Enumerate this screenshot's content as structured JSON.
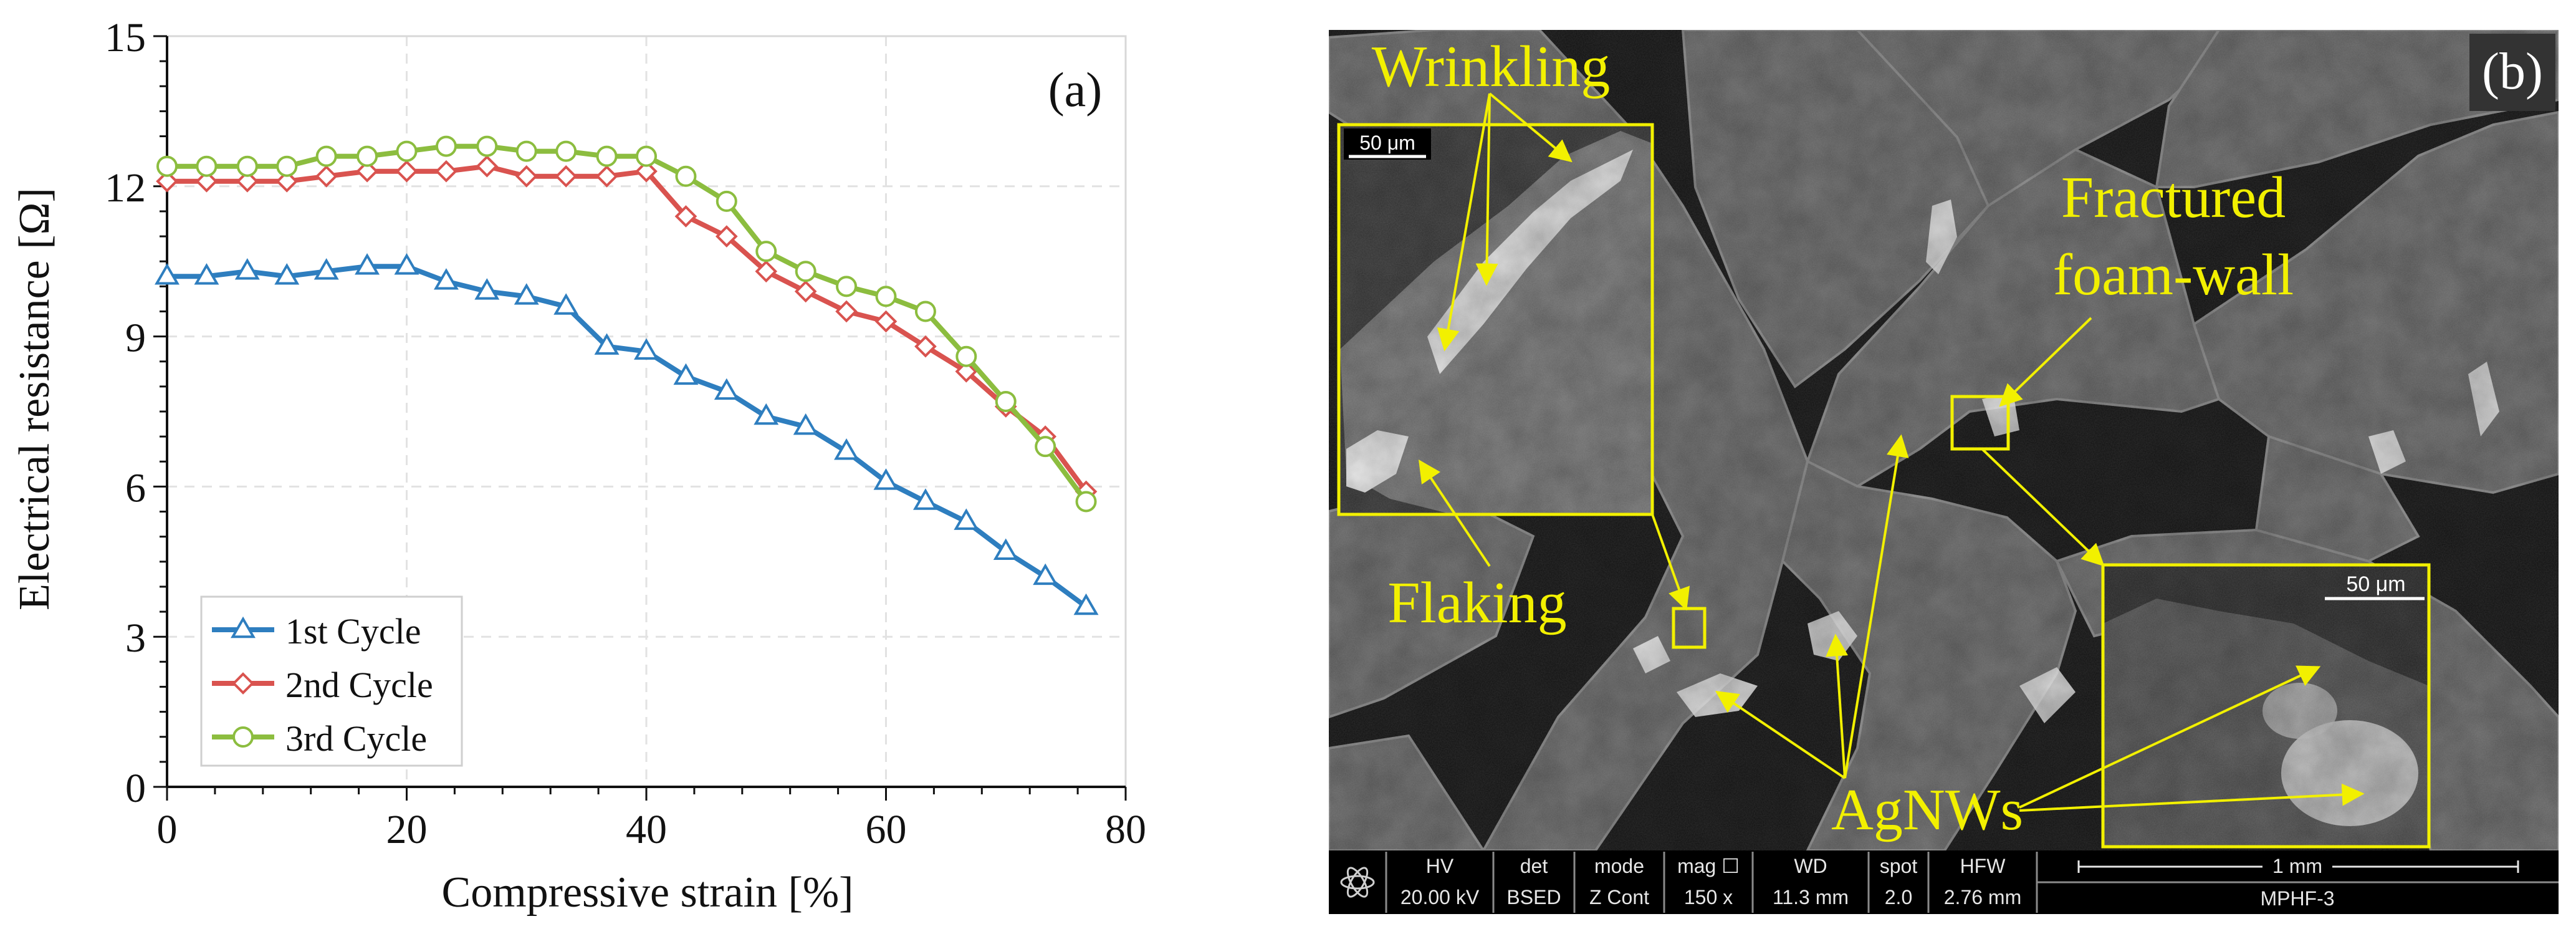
{
  "chart_data": [
    {
      "type": "line",
      "panel_label": "(a)",
      "xlabel": "Compressive strain [%]",
      "ylabel": "Electrical resistance [Ω]",
      "xlim": [
        0,
        80
      ],
      "ylim": [
        0,
        15
      ],
      "xticks": [
        "0",
        "20",
        "40",
        "60",
        "80"
      ],
      "yticks": [
        "0",
        "3",
        "6",
        "9",
        "12",
        "15"
      ],
      "grid": true,
      "legend_position": "lower-left",
      "x": [
        0,
        3.3,
        6.7,
        10,
        13.3,
        16.7,
        20,
        23.3,
        26.7,
        30,
        33.3,
        36.7,
        40,
        43.3,
        46.7,
        50,
        53.3,
        56.7,
        60,
        63.3,
        66.7,
        70,
        73.3,
        76.7
      ],
      "series": [
        {
          "name": "1st Cycle",
          "color": "#2e7ebf",
          "marker": "triangle",
          "values": [
            10.2,
            10.2,
            10.3,
            10.2,
            10.3,
            10.4,
            10.4,
            10.1,
            9.9,
            9.8,
            9.6,
            8.8,
            8.7,
            8.2,
            7.9,
            7.4,
            7.2,
            6.7,
            6.1,
            5.7,
            5.3,
            4.7,
            4.2,
            3.6
          ]
        },
        {
          "name": "2nd Cycle",
          "color": "#d9534f",
          "marker": "diamond",
          "values": [
            12.1,
            12.1,
            12.1,
            12.1,
            12.2,
            12.3,
            12.3,
            12.3,
            12.4,
            12.2,
            12.2,
            12.2,
            12.3,
            11.4,
            11.0,
            10.3,
            9.9,
            9.5,
            9.3,
            8.8,
            8.3,
            7.6,
            7.0,
            5.9
          ]
        },
        {
          "name": "3rd Cycle",
          "color": "#8cbd3f",
          "marker": "circle",
          "values": [
            12.4,
            12.4,
            12.4,
            12.4,
            12.6,
            12.6,
            12.7,
            12.8,
            12.8,
            12.7,
            12.7,
            12.6,
            12.6,
            12.2,
            11.7,
            10.7,
            10.3,
            10.0,
            9.8,
            9.5,
            8.6,
            7.7,
            6.8,
            5.7
          ]
        }
      ]
    },
    {
      "type": "image",
      "panel_label": "(b)",
      "annotations": {
        "wrinkling": "Wrinkling",
        "fractured_line1": "Fractured",
        "fractured_line2": "foam-wall",
        "flaking": "Flaking",
        "agnws": "AgNWs"
      },
      "scale_bars": {
        "inset_left": "50 μm",
        "inset_right": "50 μm",
        "main": "1 mm"
      },
      "sem_info": {
        "hv_label": "HV",
        "hv_value": "20.00 kV",
        "det_label": "det",
        "det_value": "BSED",
        "mode_label": "mode",
        "mode_value": "Z Cont",
        "mag_label": "mag ☐",
        "mag_value": "150 x",
        "wd_label": "WD",
        "wd_value": "11.3 mm",
        "spot_label": "spot",
        "spot_value": "2.0",
        "hfw_label": "HFW",
        "hfw_value": "2.76 mm",
        "sample_name": "MPHF-3"
      },
      "colors": {
        "annotation": "#f2f000",
        "background": "#161616"
      }
    }
  ]
}
